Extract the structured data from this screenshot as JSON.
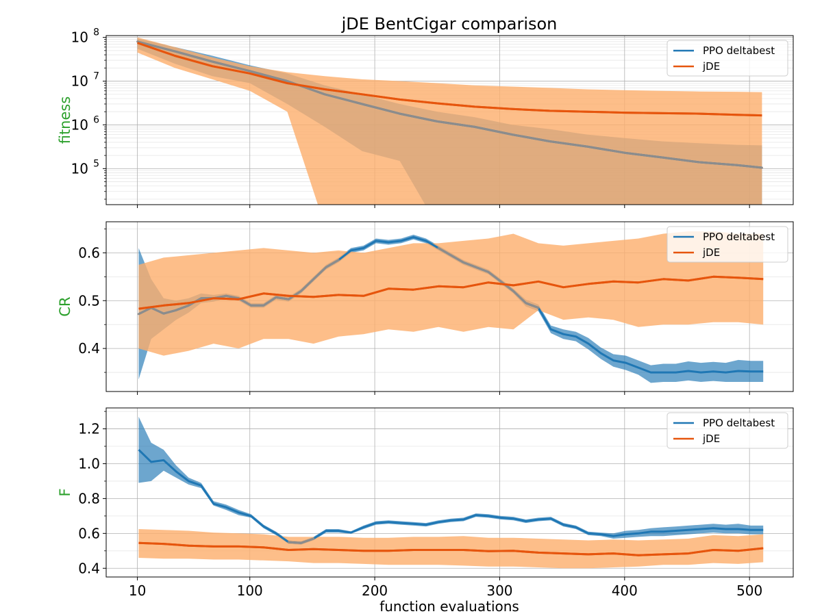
{
  "title": "jDE BentCigar comparison",
  "xlabel": "function evaluations",
  "colors": {
    "ppo": "#1f77b4",
    "ppo_fill": "#1f77b4",
    "jde": "#e6550d",
    "jde_fill": "#fdae6b",
    "ylabel": "#2ca02c"
  },
  "chart_data": [
    {
      "type": "line",
      "ylabel": "fitness",
      "yscale": "log",
      "ylim": [
        15000,
        110000000
      ],
      "xlim": [
        -15,
        535
      ],
      "x_ticks": [
        10,
        100,
        200,
        300,
        400,
        500
      ],
      "y_ticks": [
        100000,
        1000000,
        10000000,
        100000000
      ],
      "y_tick_labels": [
        {
          "base": "10",
          "exp": "5"
        },
        {
          "base": "10",
          "exp": "6"
        },
        {
          "base": "10",
          "exp": "7"
        },
        {
          "base": "10",
          "exp": "8"
        }
      ],
      "grid": true,
      "legend": "top-right",
      "series": [
        {
          "name": "PPO deltabest",
          "x": [
            10,
            40,
            70,
            100,
            130,
            160,
            190,
            220,
            250,
            280,
            310,
            340,
            370,
            400,
            430,
            460,
            490,
            510
          ],
          "mean": [
            80000000,
            48000000,
            28000000,
            17000000,
            10000000,
            5000000,
            3000000,
            1800000,
            1200000,
            900000,
            600000,
            420000,
            320000,
            230000,
            180000,
            140000,
            120000,
            105000
          ],
          "lower": [
            55000000,
            25000000,
            13000000,
            9000000,
            3000000,
            900000,
            250000,
            150000,
            5000,
            5000,
            5000,
            5000,
            5000,
            5000,
            5000,
            5000,
            5000,
            5000
          ],
          "upper": [
            95000000,
            60000000,
            38000000,
            23000000,
            15000000,
            8000000,
            5000000,
            3000000,
            2000000,
            1500000,
            1000000,
            800000,
            600000,
            500000,
            420000,
            380000,
            350000,
            340000
          ]
        },
        {
          "name": "jDE",
          "x": [
            10,
            40,
            70,
            100,
            130,
            160,
            190,
            220,
            250,
            280,
            310,
            340,
            370,
            400,
            430,
            460,
            490,
            510
          ],
          "mean": [
            75000000,
            38000000,
            22000000,
            15000000,
            9000000,
            6500000,
            5000000,
            3800000,
            3100000,
            2600000,
            2300000,
            2100000,
            2000000,
            1900000,
            1850000,
            1800000,
            1700000,
            1650000
          ],
          "lower": [
            45000000,
            20000000,
            11000000,
            6000000,
            2000000,
            5000,
            5000,
            5000,
            5000,
            5000,
            5000,
            5000,
            5000,
            5000,
            5000,
            5000,
            5000,
            5000
          ],
          "upper": [
            100000000,
            60000000,
            35000000,
            22000000,
            16000000,
            13000000,
            11000000,
            10000000,
            9000000,
            8000000,
            7500000,
            7000000,
            6500000,
            6200000,
            6000000,
            5800000,
            5700000,
            5600000
          ]
        }
      ]
    },
    {
      "type": "line",
      "ylabel": "CR",
      "yscale": "linear",
      "ylim": [
        0.31,
        0.665
      ],
      "xlim": [
        -15,
        535
      ],
      "x_ticks": [
        10,
        100,
        200,
        300,
        400,
        500
      ],
      "y_ticks": [
        0.4,
        0.5,
        0.6
      ],
      "y_tick_labels": [
        "0.4",
        "0.5",
        "0.6"
      ],
      "grid": true,
      "legend": "top-right",
      "series": [
        {
          "name": "PPO deltabest",
          "x": [
            11,
            21,
            31,
            41,
            51,
            61,
            71,
            81,
            91,
            101,
            111,
            121,
            131,
            141,
            151,
            161,
            171,
            181,
            191,
            201,
            211,
            221,
            231,
            241,
            251,
            261,
            271,
            281,
            291,
            301,
            311,
            321,
            331,
            341,
            351,
            361,
            371,
            381,
            391,
            401,
            411,
            421,
            431,
            441,
            451,
            461,
            471,
            481,
            491,
            501,
            511
          ],
          "mean": [
            0.472,
            0.485,
            0.473,
            0.48,
            0.49,
            0.505,
            0.505,
            0.51,
            0.505,
            0.49,
            0.49,
            0.507,
            0.503,
            0.52,
            0.545,
            0.57,
            0.585,
            0.605,
            0.61,
            0.625,
            0.622,
            0.625,
            0.633,
            0.625,
            0.61,
            0.595,
            0.58,
            0.57,
            0.56,
            0.54,
            0.52,
            0.495,
            0.485,
            0.44,
            0.43,
            0.425,
            0.41,
            0.39,
            0.375,
            0.37,
            0.36,
            0.35,
            0.35,
            0.35,
            0.353,
            0.35,
            0.352,
            0.35,
            0.353,
            0.352,
            0.352
          ],
          "lower": [
            0.335,
            0.42,
            0.44,
            0.46,
            0.475,
            0.495,
            0.498,
            0.505,
            0.5,
            0.485,
            0.485,
            0.502,
            0.498,
            0.515,
            0.54,
            0.565,
            0.58,
            0.6,
            0.605,
            0.62,
            0.617,
            0.62,
            0.628,
            0.62,
            0.605,
            0.59,
            0.575,
            0.565,
            0.555,
            0.535,
            0.515,
            0.488,
            0.478,
            0.432,
            0.42,
            0.415,
            0.398,
            0.378,
            0.362,
            0.355,
            0.345,
            0.328,
            0.33,
            0.33,
            0.333,
            0.33,
            0.332,
            0.33,
            0.33,
            0.33,
            0.33
          ],
          "upper": [
            0.61,
            0.545,
            0.505,
            0.5,
            0.505,
            0.515,
            0.512,
            0.515,
            0.51,
            0.495,
            0.495,
            0.512,
            0.508,
            0.525,
            0.55,
            0.575,
            0.59,
            0.61,
            0.615,
            0.63,
            0.627,
            0.63,
            0.638,
            0.63,
            0.615,
            0.6,
            0.585,
            0.575,
            0.565,
            0.545,
            0.525,
            0.502,
            0.492,
            0.448,
            0.44,
            0.435,
            0.422,
            0.402,
            0.388,
            0.385,
            0.375,
            0.365,
            0.368,
            0.368,
            0.373,
            0.37,
            0.372,
            0.37,
            0.376,
            0.374,
            0.374
          ]
        },
        {
          "name": "jDE",
          "x": [
            11,
            31,
            51,
            71,
            91,
            111,
            131,
            151,
            171,
            191,
            211,
            231,
            251,
            271,
            291,
            311,
            331,
            351,
            371,
            391,
            411,
            431,
            451,
            471,
            491,
            511
          ],
          "mean": [
            0.483,
            0.49,
            0.495,
            0.505,
            0.503,
            0.515,
            0.51,
            0.508,
            0.512,
            0.51,
            0.525,
            0.523,
            0.53,
            0.528,
            0.538,
            0.532,
            0.54,
            0.528,
            0.535,
            0.54,
            0.538,
            0.545,
            0.542,
            0.55,
            0.548,
            0.545
          ],
          "lower": [
            0.4,
            0.385,
            0.395,
            0.41,
            0.4,
            0.42,
            0.42,
            0.41,
            0.425,
            0.43,
            0.44,
            0.435,
            0.445,
            0.435,
            0.445,
            0.44,
            0.48,
            0.46,
            0.465,
            0.46,
            0.445,
            0.45,
            0.45,
            0.455,
            0.455,
            0.45
          ],
          "upper": [
            0.575,
            0.59,
            0.595,
            0.6,
            0.605,
            0.61,
            0.605,
            0.6,
            0.605,
            0.6,
            0.61,
            0.62,
            0.62,
            0.625,
            0.63,
            0.64,
            0.62,
            0.615,
            0.62,
            0.625,
            0.63,
            0.64,
            0.645,
            0.645,
            0.64,
            0.64
          ]
        }
      ]
    },
    {
      "type": "line",
      "ylabel": "F",
      "yscale": "linear",
      "ylim": [
        0.35,
        1.32
      ],
      "xlim": [
        -15,
        535
      ],
      "x_ticks": [
        10,
        100,
        200,
        300,
        400,
        500
      ],
      "x_tick_labels": [
        "10",
        "100",
        "200",
        "300",
        "400",
        "500"
      ],
      "y_ticks": [
        0.4,
        0.6,
        0.8,
        1.0,
        1.2
      ],
      "y_tick_labels": [
        "0.4",
        "0.6",
        "0.8",
        "1.0",
        "1.2"
      ],
      "grid": true,
      "legend": "top-right",
      "series": [
        {
          "name": "PPO deltabest",
          "x": [
            11,
            21,
            31,
            41,
            51,
            61,
            71,
            81,
            91,
            101,
            111,
            121,
            131,
            141,
            151,
            161,
            171,
            181,
            191,
            201,
            211,
            221,
            231,
            241,
            251,
            261,
            271,
            281,
            291,
            301,
            311,
            321,
            331,
            341,
            351,
            361,
            371,
            381,
            391,
            401,
            411,
            421,
            431,
            441,
            451,
            461,
            471,
            481,
            491,
            501,
            511
          ],
          "mean": [
            1.08,
            1.01,
            1.02,
            0.955,
            0.9,
            0.875,
            0.77,
            0.75,
            0.72,
            0.7,
            0.64,
            0.6,
            0.55,
            0.545,
            0.57,
            0.615,
            0.615,
            0.605,
            0.635,
            0.66,
            0.665,
            0.66,
            0.655,
            0.65,
            0.665,
            0.675,
            0.68,
            0.705,
            0.7,
            0.69,
            0.685,
            0.67,
            0.68,
            0.685,
            0.65,
            0.635,
            0.6,
            0.595,
            0.585,
            0.595,
            0.6,
            0.61,
            0.61,
            0.615,
            0.62,
            0.625,
            0.63,
            0.625,
            0.625,
            0.62,
            0.62
          ],
          "lower": [
            0.89,
            0.9,
            0.96,
            0.92,
            0.88,
            0.86,
            0.76,
            0.735,
            0.705,
            0.69,
            0.63,
            0.59,
            0.54,
            0.535,
            0.56,
            0.605,
            0.605,
            0.598,
            0.625,
            0.65,
            0.655,
            0.65,
            0.645,
            0.64,
            0.655,
            0.665,
            0.67,
            0.695,
            0.69,
            0.68,
            0.675,
            0.66,
            0.67,
            0.675,
            0.64,
            0.625,
            0.59,
            0.585,
            0.57,
            0.575,
            0.58,
            0.585,
            0.585,
            0.59,
            0.595,
            0.6,
            0.605,
            0.6,
            0.6,
            0.595,
            0.595
          ],
          "upper": [
            1.27,
            1.12,
            1.08,
            0.99,
            0.92,
            0.89,
            0.785,
            0.765,
            0.735,
            0.71,
            0.65,
            0.61,
            0.56,
            0.555,
            0.58,
            0.625,
            0.625,
            0.612,
            0.645,
            0.67,
            0.675,
            0.67,
            0.665,
            0.66,
            0.675,
            0.685,
            0.69,
            0.715,
            0.71,
            0.7,
            0.695,
            0.68,
            0.69,
            0.695,
            0.66,
            0.645,
            0.61,
            0.605,
            0.6,
            0.615,
            0.62,
            0.63,
            0.635,
            0.64,
            0.645,
            0.65,
            0.655,
            0.65,
            0.655,
            0.645,
            0.645
          ]
        },
        {
          "name": "jDE",
          "x": [
            11,
            31,
            51,
            71,
            91,
            111,
            131,
            151,
            171,
            191,
            211,
            231,
            251,
            271,
            291,
            311,
            331,
            351,
            371,
            391,
            411,
            431,
            451,
            471,
            491,
            511
          ],
          "mean": [
            0.545,
            0.54,
            0.53,
            0.525,
            0.525,
            0.52,
            0.505,
            0.51,
            0.505,
            0.5,
            0.5,
            0.505,
            0.505,
            0.505,
            0.498,
            0.5,
            0.49,
            0.485,
            0.48,
            0.485,
            0.475,
            0.48,
            0.485,
            0.505,
            0.5,
            0.515
          ],
          "lower": [
            0.46,
            0.455,
            0.455,
            0.45,
            0.45,
            0.445,
            0.44,
            0.43,
            0.43,
            0.425,
            0.42,
            0.42,
            0.42,
            0.415,
            0.41,
            0.41,
            0.405,
            0.4,
            0.4,
            0.405,
            0.41,
            0.42,
            0.42,
            0.43,
            0.425,
            0.435
          ],
          "upper": [
            0.625,
            0.62,
            0.615,
            0.605,
            0.6,
            0.595,
            0.58,
            0.58,
            0.58,
            0.575,
            0.575,
            0.58,
            0.58,
            0.585,
            0.575,
            0.575,
            0.57,
            0.565,
            0.56,
            0.565,
            0.56,
            0.565,
            0.57,
            0.59,
            0.585,
            0.595
          ]
        }
      ]
    }
  ]
}
